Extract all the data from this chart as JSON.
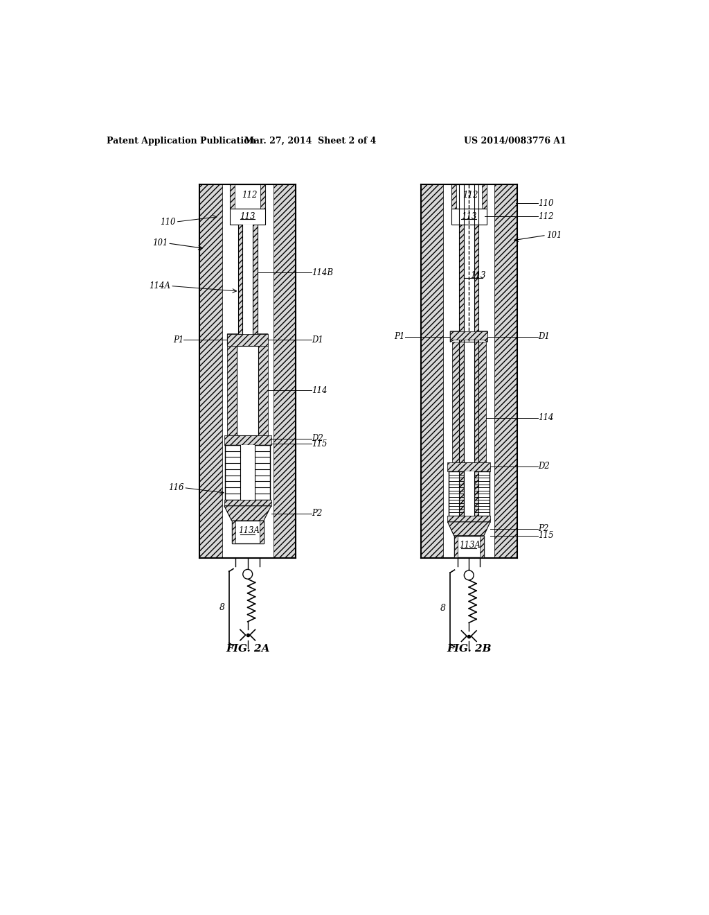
{
  "title_left": "Patent Application Publication",
  "title_mid": "Mar. 27, 2014  Sheet 2 of 4",
  "title_right": "US 2014/0083776 A1",
  "fig2a_label": "FIG. 2A",
  "fig2b_label": "FIG. 2B",
  "background_color": "#ffffff"
}
